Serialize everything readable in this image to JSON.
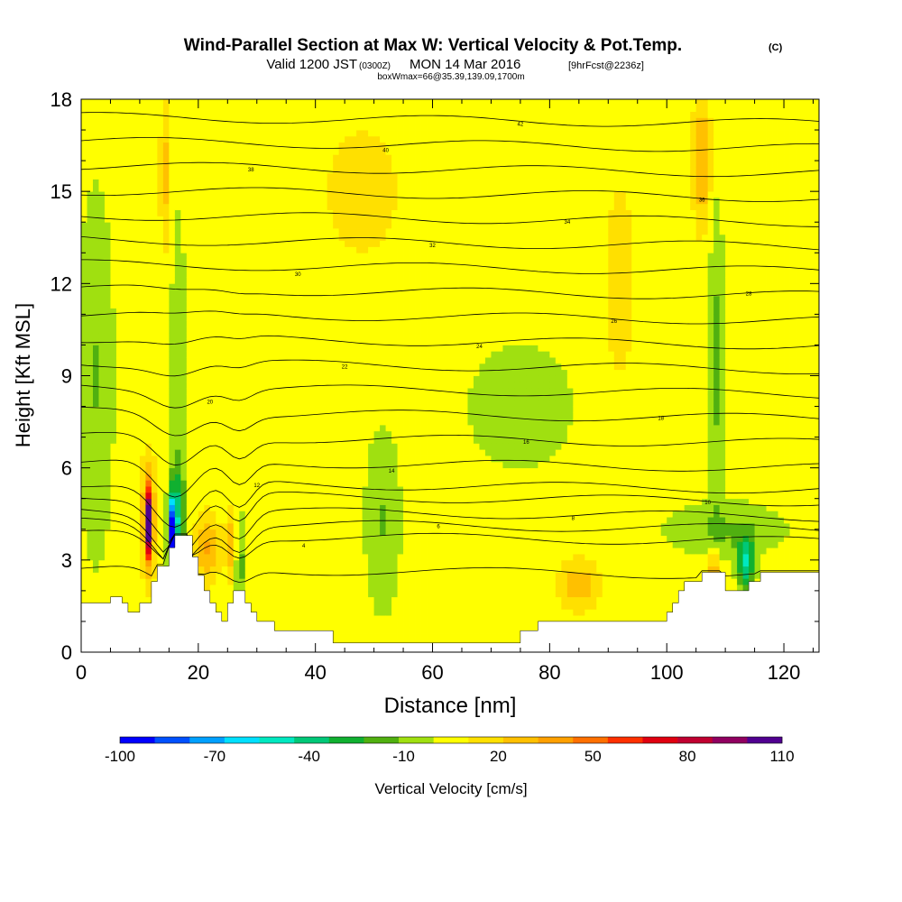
{
  "header": {
    "title_main": "Wind-Parallel Section at Max W: Vertical Velocity & Pot.Temp.",
    "title_mark": "(C)",
    "valid_prefix": "Valid 1200 JST",
    "valid_zulu": "(0300Z)",
    "valid_date": "MON 14 Mar 2016",
    "forecast": "[9hrFcst@2236z]",
    "box_info": "boxWmax=66@35.39,139.09,1700m"
  },
  "chart_data": {
    "type": "heatmap",
    "xlabel": "Distance [nm]",
    "ylabel": "Height [Kft MSL]",
    "xlim": [
      0,
      126
    ],
    "ylim": [
      0,
      18
    ],
    "x_ticks": [
      0,
      20,
      40,
      60,
      80,
      100,
      120
    ],
    "y_ticks": [
      0,
      3,
      6,
      9,
      12,
      15,
      18
    ],
    "colorbar": {
      "label": "Vertical Velocity [cm/s]",
      "tick_values": [
        -100,
        -70,
        -40,
        -10,
        20,
        50,
        80,
        110
      ],
      "tick_labels": [
        "-100",
        "-70",
        "-40",
        "-10",
        "20",
        "50",
        "80",
        "110"
      ],
      "colors": [
        "#0000ff",
        "#0050ff",
        "#00a0ff",
        "#00e0ff",
        "#00e8c0",
        "#00c878",
        "#10b030",
        "#50b010",
        "#a0e010",
        "#ffff00",
        "#ffe000",
        "#ffc000",
        "#ffa000",
        "#ff7000",
        "#ff3000",
        "#e00010",
        "#c00030",
        "#900060",
        "#500090"
      ]
    },
    "background_value": 5,
    "anomalies": [
      {
        "x": 11.5,
        "y": 4.2,
        "w": 0.5,
        "h": 1.1,
        "value": 85
      },
      {
        "x": 11.5,
        "y": 4.4,
        "w": 1.3,
        "h": 1.8,
        "value": 40
      },
      {
        "x": 15.5,
        "y": 3.9,
        "w": 0.7,
        "h": 1.1,
        "value": -90
      },
      {
        "x": 16.5,
        "y": 4.6,
        "w": 1.2,
        "h": 1.6,
        "value": -30
      },
      {
        "x": 21.5,
        "y": 3.4,
        "w": 2.0,
        "h": 1.0,
        "value": 35
      },
      {
        "x": 27.0,
        "y": 3.0,
        "w": 0.5,
        "h": 1.6,
        "value": -55
      },
      {
        "x": 26.0,
        "y": 3.5,
        "w": 1.2,
        "h": 1.2,
        "value": 30
      },
      {
        "x": 16.5,
        "y": 9.5,
        "w": 1.5,
        "h": 5.5,
        "value": -8
      },
      {
        "x": 14.5,
        "y": 15.5,
        "w": 1.0,
        "h": 2.5,
        "value": 25
      },
      {
        "x": 2.5,
        "y": 9.0,
        "w": 3.0,
        "h": 6.0,
        "value": -12
      },
      {
        "x": 51.5,
        "y": 4.3,
        "w": 3.0,
        "h": 3.0,
        "value": -12
      },
      {
        "x": 75.0,
        "y": 8.0,
        "w": 9.0,
        "h": 2.0,
        "value": -10
      },
      {
        "x": 85.0,
        "y": 2.2,
        "w": 3.0,
        "h": 0.8,
        "value": 30
      },
      {
        "x": 92.0,
        "y": 12.0,
        "w": 3.0,
        "h": 4.0,
        "value": 15
      },
      {
        "x": 106.0,
        "y": 16.0,
        "w": 1.5,
        "h": 2.0,
        "value": 35
      },
      {
        "x": 108.5,
        "y": 9.5,
        "w": 1.3,
        "h": 5.0,
        "value": -15
      },
      {
        "x": 113.5,
        "y": 2.9,
        "w": 1.5,
        "h": 0.8,
        "value": -45
      },
      {
        "x": 108.0,
        "y": 2.7,
        "w": 1.0,
        "h": 0.7,
        "value": 35
      },
      {
        "x": 110.0,
        "y": 4.0,
        "w": 10.0,
        "h": 0.9,
        "value": -12
      },
      {
        "x": 48.0,
        "y": 15.0,
        "w": 12.0,
        "h": 4.0,
        "value": 12
      }
    ],
    "terrain": [
      [
        0,
        1.6
      ],
      [
        5,
        1.6
      ],
      [
        5,
        1.8
      ],
      [
        7,
        1.8
      ],
      [
        7,
        1.6
      ],
      [
        8,
        1.6
      ],
      [
        8,
        1.3
      ],
      [
        10,
        1.3
      ],
      [
        10,
        1.6
      ],
      [
        12,
        1.6
      ],
      [
        12,
        2.3
      ],
      [
        13,
        2.3
      ],
      [
        13,
        2.8
      ],
      [
        15,
        2.8
      ],
      [
        15,
        3.4
      ],
      [
        16,
        3.4
      ],
      [
        16,
        3.8
      ],
      [
        19,
        3.8
      ],
      [
        19,
        3.1
      ],
      [
        20,
        3.1
      ],
      [
        20,
        2.5
      ],
      [
        21,
        2.5
      ],
      [
        21,
        2.0
      ],
      [
        22,
        2.0
      ],
      [
        22,
        1.6
      ],
      [
        23,
        1.6
      ],
      [
        23,
        1.3
      ],
      [
        24,
        1.3
      ],
      [
        24,
        1.0
      ],
      [
        25,
        1.0
      ],
      [
        25,
        1.6
      ],
      [
        26,
        1.6
      ],
      [
        26,
        2.0
      ],
      [
        28,
        2.0
      ],
      [
        28,
        1.6
      ],
      [
        29,
        1.6
      ],
      [
        29,
        1.3
      ],
      [
        30,
        1.3
      ],
      [
        30,
        1.0
      ],
      [
        33,
        1.0
      ],
      [
        33,
        0.7
      ],
      [
        43,
        0.7
      ],
      [
        43,
        0.3
      ],
      [
        75,
        0.3
      ],
      [
        75,
        0.7
      ],
      [
        78,
        0.7
      ],
      [
        78,
        1.0
      ],
      [
        100,
        1.0
      ],
      [
        100,
        1.3
      ],
      [
        101,
        1.3
      ],
      [
        101,
        1.6
      ],
      [
        102,
        1.6
      ],
      [
        102,
        2.0
      ],
      [
        103,
        2.0
      ],
      [
        103,
        2.3
      ],
      [
        106,
        2.3
      ],
      [
        106,
        2.6
      ],
      [
        110,
        2.6
      ],
      [
        110,
        2.0
      ],
      [
        114,
        2.0
      ],
      [
        114,
        2.3
      ],
      [
        116,
        2.3
      ],
      [
        116,
        2.6
      ],
      [
        126,
        2.6
      ]
    ],
    "isentropes": [
      {
        "label": "2",
        "base": 2.5,
        "dip": 0.7
      },
      {
        "label": "4",
        "base": 3.6,
        "dip": 1.0
      },
      {
        "label": "6",
        "base": 4.0,
        "dip": 1.3
      },
      {
        "label": "8",
        "base": 4.4,
        "dip": 1.4
      },
      {
        "label": "10",
        "base": 4.9,
        "dip": 1.5
      },
      {
        "label": "12",
        "base": 5.3,
        "dip": 1.5
      },
      {
        "label": "14",
        "base": 6.0,
        "dip": 1.3
      },
      {
        "label": "16",
        "base": 6.8,
        "dip": 1.0
      },
      {
        "label": "18",
        "base": 7.6,
        "dip": 0.7
      },
      {
        "label": "20",
        "base": 8.4,
        "dip": 0.5
      },
      {
        "label": "22",
        "base": 9.2,
        "dip": 0.3
      },
      {
        "label": "24",
        "base": 10.0,
        "dip": 0.2
      },
      {
        "label": "26",
        "base": 10.8,
        "dip": 0.1
      },
      {
        "label": "28",
        "base": 11.6,
        "dip": 0.1
      },
      {
        "label": "30",
        "base": 12.4,
        "dip": 0.0
      },
      {
        "label": "32",
        "base": 13.2,
        "dip": 0.0
      },
      {
        "label": "34",
        "base": 14.0,
        "dip": 0.0
      },
      {
        "label": "36",
        "base": 14.8,
        "dip": 0.0
      },
      {
        "label": "38",
        "base": 15.6,
        "dip": 0.0
      },
      {
        "label": "40",
        "base": 16.4,
        "dip": 0.0
      },
      {
        "label": "42",
        "base": 17.2,
        "dip": 0.0
      }
    ]
  }
}
